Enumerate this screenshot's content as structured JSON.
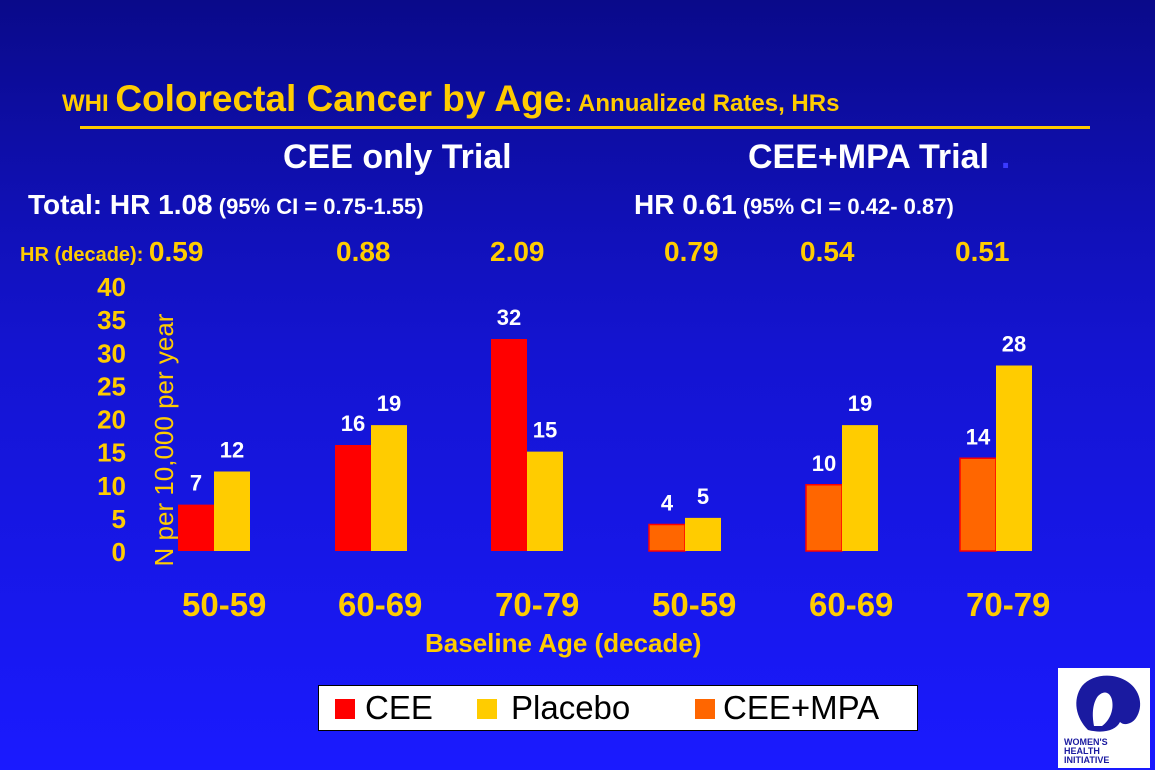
{
  "title": {
    "prefix": "WHI ",
    "main": "Colorectal Cancer by Age",
    "suffix": ": Annualized Rates, HRs"
  },
  "trials": {
    "cee": {
      "name": "CEE only Trial",
      "total_hr": "Total: HR 1.08",
      "ci": " (95% CI = 0.75-1.55)"
    },
    "ceempa": {
      "name": "CEE+MPA Trial",
      "total_hr": "HR 0.61",
      "ci": " (95% CI = 0.42- 0.87)"
    },
    "dot": "."
  },
  "hr_decade": {
    "label": "HR (decade): ",
    "values": [
      "0.59",
      "0.88",
      "2.09",
      "0.79",
      "0.54",
      "0.51"
    ]
  },
  "chart_data": {
    "type": "bar",
    "ylabel": "N per 10,000 per year",
    "xlabel": "Baseline Age (decade)",
    "ylim": [
      0,
      40
    ],
    "yticks": [
      "0",
      "5",
      "10",
      "15",
      "20",
      "25",
      "30",
      "35",
      "40"
    ],
    "categories": [
      "50-59",
      "60-69",
      "70-79",
      "50-59",
      "60-69",
      "70-79"
    ],
    "series": [
      {
        "name": "CEE",
        "values": [
          7,
          16,
          32,
          null,
          null,
          null
        ],
        "color": "#ff0000"
      },
      {
        "name": "Placebo",
        "values": [
          12,
          19,
          15,
          5,
          19,
          28
        ],
        "color": "#ffcc00"
      },
      {
        "name": "CEE+MPA",
        "values": [
          null,
          null,
          null,
          4,
          10,
          14
        ],
        "color": "#ff6600"
      }
    ],
    "grid": false,
    "legend": "bottom"
  },
  "logo": {
    "line1": "WOMEN'S",
    "line2": "HEALTH",
    "line3": "INITIATIVE"
  }
}
